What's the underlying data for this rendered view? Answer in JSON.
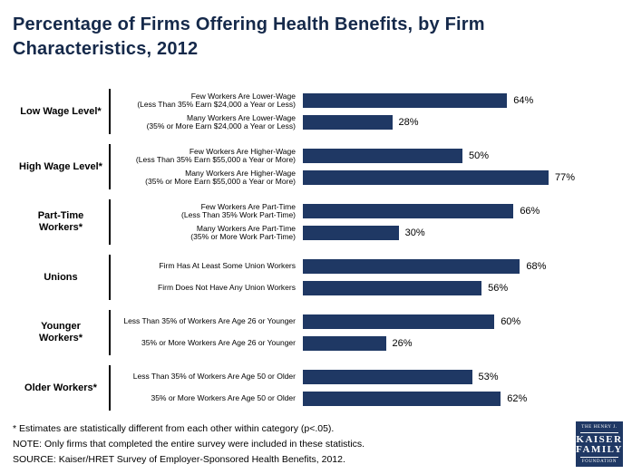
{
  "title_lines": [
    "Percentage of Firms Offering Health Benefits, by Firm",
    "Characteristics, 2012"
  ],
  "colors": {
    "bar": "#1f3864",
    "title": "#15294a",
    "logo_bg": "#1f3864"
  },
  "chart_data": {
    "type": "bar",
    "orientation": "horizontal",
    "title": "Percentage of Firms Offering Health Benefits, by Firm Characteristics, 2012",
    "value_unit": "%",
    "xlim": [
      0,
      100
    ],
    "grid": false,
    "legend": false,
    "groups": [
      {
        "category": "Low Wage Level*",
        "bars": [
          {
            "label_lines": [
              "Few Workers Are Lower-Wage",
              "(Less Than 35% Earn $24,000 a Year or Less)"
            ],
            "value": 64,
            "value_label": "64%"
          },
          {
            "label_lines": [
              "Many Workers Are Lower-Wage",
              "(35% or More Earn $24,000 a Year or Less)"
            ],
            "value": 28,
            "value_label": "28%"
          }
        ]
      },
      {
        "category": "High Wage Level*",
        "bars": [
          {
            "label_lines": [
              "Few Workers Are Higher-Wage",
              "(Less Than 35% Earn $55,000 a Year or More)"
            ],
            "value": 50,
            "value_label": "50%"
          },
          {
            "label_lines": [
              "Many Workers Are Higher-Wage",
              "(35% or More Earn $55,000 a Year or More)"
            ],
            "value": 77,
            "value_label": "77%"
          }
        ]
      },
      {
        "category": "Part-Time Workers*",
        "bars": [
          {
            "label_lines": [
              "Few Workers Are Part-Time",
              "(Less Than 35% Work Part-Time)"
            ],
            "value": 66,
            "value_label": "66%"
          },
          {
            "label_lines": [
              "Many Workers Are Part-Time",
              "(35% or More Work Part-Time)"
            ],
            "value": 30,
            "value_label": "30%"
          }
        ]
      },
      {
        "category": "Unions",
        "bars": [
          {
            "label_lines": [
              "Firm Has At Least Some Union Workers"
            ],
            "value": 68,
            "value_label": "68%"
          },
          {
            "label_lines": [
              "Firm Does Not Have Any Union Workers"
            ],
            "value": 56,
            "value_label": "56%"
          }
        ]
      },
      {
        "category": "Younger Workers*",
        "bars": [
          {
            "label_lines": [
              "Less Than 35% of Workers Are Age 26 or Younger"
            ],
            "value": 60,
            "value_label": "60%"
          },
          {
            "label_lines": [
              "35% or More Workers Are Age 26 or Younger"
            ],
            "value": 26,
            "value_label": "26%"
          }
        ]
      },
      {
        "category": "Older Workers*",
        "bars": [
          {
            "label_lines": [
              "Less Than 35% of Workers Are Age 50 or Older"
            ],
            "value": 53,
            "value_label": "53%"
          },
          {
            "label_lines": [
              "35% or More Workers Are Age 50 or Older"
            ],
            "value": 62,
            "value_label": "62%"
          }
        ]
      }
    ]
  },
  "footnotes": [
    "* Estimates are statistically different from each other within category (p<.05).",
    "NOTE: Only firms that completed the entire survey were included in these statistics.",
    "SOURCE: Kaiser/HRET Survey of Employer-Sponsored Health Benefits, 2012."
  ],
  "logo": {
    "line_top": "THE HENRY J.",
    "name_1": "KAISER",
    "name_2": "FAMILY",
    "line_bottom": "FOUNDATION"
  }
}
